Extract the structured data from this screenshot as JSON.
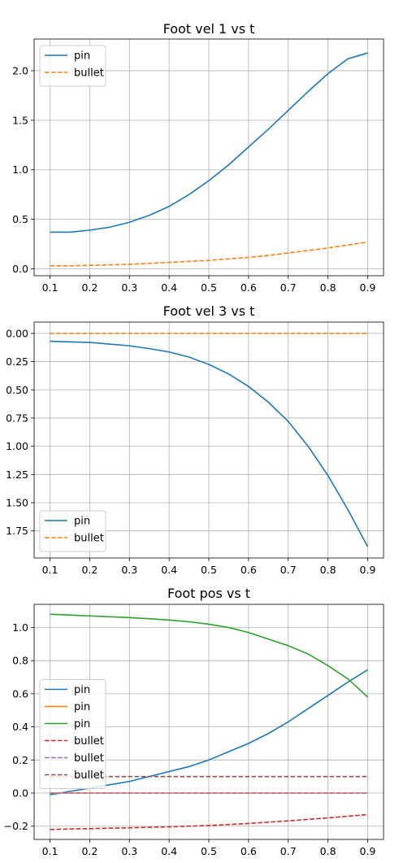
{
  "chart_data": [
    {
      "type": "line",
      "title": "Foot vel 1 vs t",
      "xlim": [
        0.06,
        0.94
      ],
      "ylim": [
        -0.07,
        2.32
      ],
      "xticks": [
        0.1,
        0.2,
        0.3,
        0.4,
        0.5,
        0.6,
        0.7,
        0.8,
        0.9
      ],
      "xtick_labels": [
        "0.1",
        "0.2",
        "0.3",
        "0.4",
        "0.5",
        "0.6",
        "0.7",
        "0.8",
        "0.9"
      ],
      "yticks": [
        0.0,
        0.5,
        1.0,
        1.5,
        2.0
      ],
      "ytick_labels": [
        "0.0",
        "0.5",
        "1.0",
        "1.5",
        "2.0"
      ],
      "grid": true,
      "legend_position": "upper-left",
      "x": [
        0.1,
        0.15,
        0.2,
        0.25,
        0.3,
        0.35,
        0.4,
        0.45,
        0.5,
        0.55,
        0.6,
        0.65,
        0.7,
        0.75,
        0.8,
        0.85,
        0.9
      ],
      "series": [
        {
          "name": "pin",
          "color": "#1f77b4",
          "dash": "solid",
          "values": [
            0.37,
            0.37,
            0.39,
            0.42,
            0.47,
            0.54,
            0.63,
            0.75,
            0.89,
            1.05,
            1.23,
            1.41,
            1.6,
            1.79,
            1.97,
            2.12,
            2.18
          ]
        },
        {
          "name": "bullet",
          "color": "#ff7f0e",
          "dash": "dashed",
          "values": [
            0.03,
            0.03,
            0.035,
            0.04,
            0.045,
            0.055,
            0.065,
            0.075,
            0.085,
            0.1,
            0.115,
            0.135,
            0.16,
            0.185,
            0.21,
            0.24,
            0.27
          ]
        }
      ]
    },
    {
      "type": "line",
      "title": "Foot vel 3 vs t",
      "xlim": [
        0.06,
        0.94
      ],
      "ylim": [
        -1.99,
        0.1
      ],
      "xticks": [
        0.1,
        0.2,
        0.3,
        0.4,
        0.5,
        0.6,
        0.7,
        0.8,
        0.9
      ],
      "xtick_labels": [
        "0.1",
        "0.2",
        "0.3",
        "0.4",
        "0.5",
        "0.6",
        "0.7",
        "0.8",
        "0.9"
      ],
      "yticks": [
        0.0,
        -0.25,
        -0.5,
        -0.75,
        -1.0,
        -1.25,
        -1.5,
        -1.75
      ],
      "ytick_labels": [
        "0.00",
        "0.25",
        "0.50",
        "0.75",
        "1.00",
        "1.25",
        "1.50",
        "1.75"
      ],
      "grid": true,
      "legend_position": "lower-left",
      "x": [
        0.1,
        0.15,
        0.2,
        0.25,
        0.3,
        0.35,
        0.4,
        0.45,
        0.5,
        0.55,
        0.6,
        0.65,
        0.7,
        0.75,
        0.8,
        0.85,
        0.9
      ],
      "series": [
        {
          "name": "pin",
          "color": "#1f77b4",
          "dash": "solid",
          "values": [
            -0.07,
            -0.075,
            -0.08,
            -0.095,
            -0.11,
            -0.135,
            -0.165,
            -0.21,
            -0.275,
            -0.36,
            -0.47,
            -0.61,
            -0.78,
            -1.0,
            -1.26,
            -1.56,
            -1.89
          ]
        },
        {
          "name": "bullet",
          "color": "#ff7f0e",
          "dash": "dashed",
          "values": [
            0.0,
            0.0,
            0.0,
            0.0,
            0.0,
            0.0,
            0.0,
            0.0,
            0.0,
            0.0,
            0.0,
            0.0,
            0.0,
            0.0,
            0.0,
            0.0,
            0.0
          ]
        }
      ]
    },
    {
      "type": "line",
      "title": "Foot pos vs t",
      "xlim": [
        0.06,
        0.94
      ],
      "ylim": [
        -0.28,
        1.14
      ],
      "xticks": [
        0.1,
        0.2,
        0.3,
        0.4,
        0.5,
        0.6,
        0.7,
        0.8,
        0.9
      ],
      "xtick_labels": [
        "0.1",
        "0.2",
        "0.3",
        "0.4",
        "0.5",
        "0.6",
        "0.7",
        "0.8",
        "0.9"
      ],
      "yticks": [
        -0.2,
        0.0,
        0.2,
        0.4,
        0.6,
        0.8,
        1.0
      ],
      "ytick_labels": [
        "−0.2",
        "0.0",
        "0.2",
        "0.4",
        "0.6",
        "0.8",
        "1.0"
      ],
      "grid": true,
      "legend_position": "center-left",
      "x": [
        0.1,
        0.15,
        0.2,
        0.25,
        0.3,
        0.35,
        0.4,
        0.45,
        0.5,
        0.55,
        0.6,
        0.65,
        0.7,
        0.75,
        0.8,
        0.85,
        0.9
      ],
      "series": [
        {
          "name": "pin",
          "color": "#1f77b4",
          "dash": "solid",
          "values": [
            -0.01,
            0.01,
            0.03,
            0.05,
            0.07,
            0.1,
            0.13,
            0.16,
            0.2,
            0.25,
            0.3,
            0.36,
            0.43,
            0.51,
            0.59,
            0.67,
            0.745
          ]
        },
        {
          "name": "pin",
          "color": "#ff7f0e",
          "dash": "solid",
          "values": [
            0.0,
            0.0,
            0.0,
            0.0,
            0.0,
            0.0,
            0.0,
            0.0,
            0.0,
            0.0,
            0.0,
            0.0,
            0.0,
            0.0,
            0.0,
            0.0,
            0.0
          ]
        },
        {
          "name": "pin",
          "color": "#2ca02c",
          "dash": "solid",
          "values": [
            1.08,
            1.075,
            1.07,
            1.065,
            1.06,
            1.053,
            1.045,
            1.035,
            1.02,
            1.0,
            0.97,
            0.93,
            0.89,
            0.84,
            0.77,
            0.69,
            0.58
          ]
        },
        {
          "name": "bullet",
          "color": "#d62728",
          "dash": "dashed",
          "values": [
            -0.22,
            -0.217,
            -0.215,
            -0.212,
            -0.21,
            -0.207,
            -0.204,
            -0.2,
            -0.196,
            -0.19,
            -0.184,
            -0.176,
            -0.168,
            -0.159,
            -0.15,
            -0.14,
            -0.13
          ]
        },
        {
          "name": "bullet",
          "color": "#9467bd",
          "dash": "dashed",
          "values": [
            0.0,
            0.0,
            0.0,
            0.0,
            0.0,
            0.0,
            0.0,
            0.0,
            0.0,
            0.0,
            0.0,
            0.0,
            0.0,
            0.0,
            0.0,
            0.0,
            0.0
          ]
        },
        {
          "name": "bullet",
          "color": "#8c564b",
          "dash": "dashed",
          "values": [
            0.1,
            0.1,
            0.1,
            0.1,
            0.1,
            0.1,
            0.1,
            0.1,
            0.1,
            0.1,
            0.1,
            0.1,
            0.1,
            0.1,
            0.1,
            0.1,
            0.1
          ]
        }
      ]
    }
  ]
}
